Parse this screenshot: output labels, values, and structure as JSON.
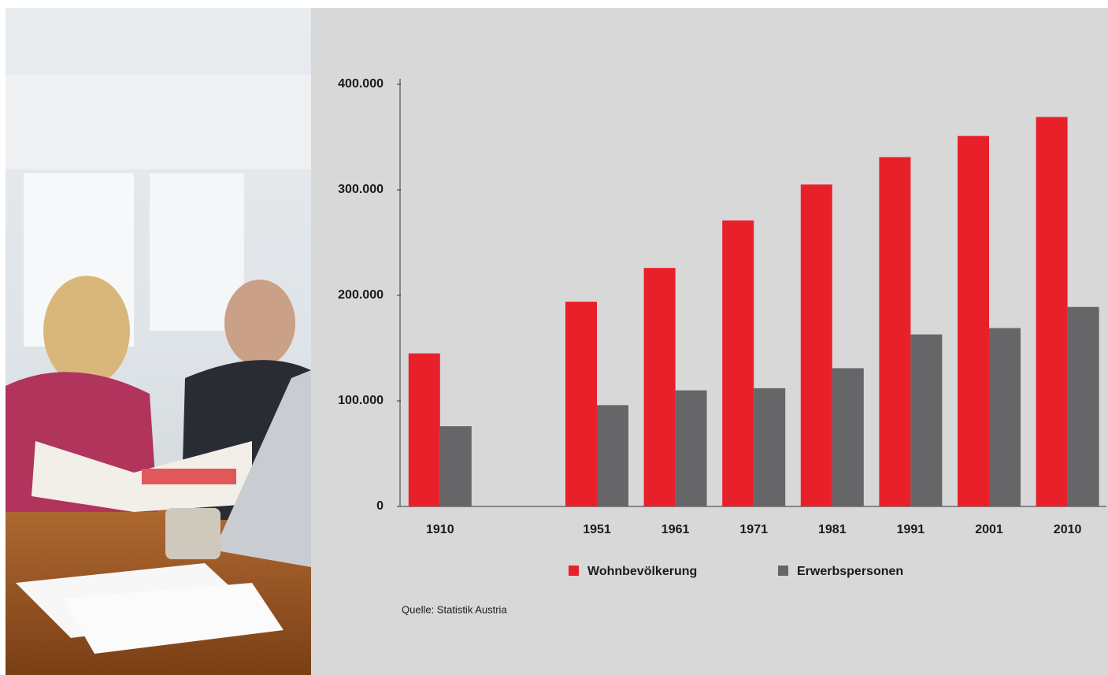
{
  "chart_data": {
    "type": "bar",
    "categories": [
      "1910",
      null,
      "1951",
      "1961",
      "1971",
      "1981",
      "1991",
      "2001",
      "2010"
    ],
    "series": [
      {
        "name": "Wohnbevölkerung",
        "color": "#e8202a",
        "values": [
          145000,
          null,
          194000,
          226000,
          271000,
          305000,
          331000,
          351000,
          369000
        ]
      },
      {
        "name": "Erwerbspersonen",
        "color": "#666668",
        "values": [
          76000,
          null,
          96000,
          110000,
          112000,
          131000,
          163000,
          169000,
          189000
        ]
      }
    ],
    "ylim": [
      0,
      400000
    ],
    "yticks": [
      0,
      {
        "value": 100000,
        "label": "100.000"
      },
      {
        "value": 200000,
        "label": "200.000"
      },
      {
        "value": 300000,
        "label": "300.000"
      },
      {
        "value": 400000,
        "label": "400.000"
      }
    ],
    "grid": false,
    "legend": "bottom",
    "source": "Quelle: Statistik Austria"
  }
}
